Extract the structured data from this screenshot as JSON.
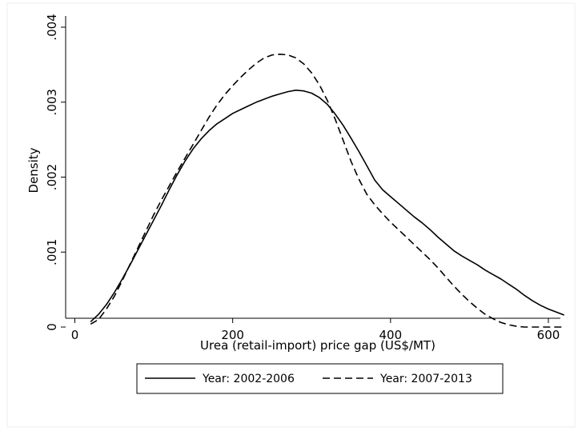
{
  "chart_data": {
    "type": "line",
    "xlabel": "Urea (retail-import) price gap (US$/MT)",
    "ylabel": "Density",
    "xlim": [
      0,
      640
    ],
    "ylim": [
      0,
      0.004
    ],
    "xticks": [
      0,
      200,
      400,
      600
    ],
    "xtick_labels": [
      "0",
      "200",
      "400",
      "600"
    ],
    "yticks": [
      0,
      0.001,
      0.002,
      0.003,
      0.004
    ],
    "ytick_labels": [
      "0",
      ".001",
      ".002",
      ".003",
      ".004"
    ],
    "grid": false,
    "legend_position": "bottom",
    "series": [
      {
        "name": "Year: 2002-2006",
        "style": "solid",
        "color": "#000000",
        "x": [
          20,
          30,
          40,
          50,
          60,
          70,
          80,
          90,
          100,
          110,
          120,
          130,
          140,
          150,
          160,
          170,
          180,
          190,
          200,
          210,
          220,
          230,
          240,
          250,
          260,
          270,
          280,
          290,
          300,
          310,
          320,
          330,
          340,
          350,
          360,
          370,
          380,
          390,
          400,
          410,
          420,
          430,
          440,
          450,
          460,
          470,
          480,
          490,
          500,
          510,
          520,
          530,
          540,
          550,
          560,
          570,
          580,
          590,
          600,
          610,
          620
        ],
        "y": [
          7e-05,
          0.00017,
          0.0003,
          0.00046,
          0.00064,
          0.00083,
          0.00103,
          0.00123,
          0.00143,
          0.00163,
          0.00184,
          0.00204,
          0.00222,
          0.00238,
          0.00251,
          0.00262,
          0.00271,
          0.00278,
          0.00285,
          0.0029,
          0.00295,
          0.003,
          0.00304,
          0.00308,
          0.00311,
          0.00314,
          0.00316,
          0.00315,
          0.00312,
          0.00306,
          0.00297,
          0.00284,
          0.00269,
          0.00252,
          0.00234,
          0.00215,
          0.00196,
          0.00183,
          0.00174,
          0.00165,
          0.00156,
          0.00147,
          0.00139,
          0.0013,
          0.0012,
          0.00111,
          0.00102,
          0.00095,
          0.00089,
          0.00083,
          0.00076,
          0.0007,
          0.00064,
          0.00057,
          0.0005,
          0.00042,
          0.00035,
          0.00029,
          0.00024,
          0.0002,
          0.00016
        ]
      },
      {
        "name": "Year: 2007-2013",
        "style": "dashed",
        "color": "#000000",
        "x": [
          20,
          30,
          40,
          50,
          60,
          70,
          80,
          90,
          100,
          110,
          120,
          130,
          140,
          150,
          160,
          170,
          180,
          190,
          200,
          210,
          220,
          230,
          240,
          250,
          260,
          270,
          280,
          290,
          300,
          310,
          320,
          330,
          340,
          350,
          360,
          370,
          380,
          390,
          400,
          410,
          420,
          430,
          440,
          450,
          460,
          470,
          480,
          490,
          500,
          510,
          520,
          530,
          540,
          550,
          560,
          570,
          580,
          590,
          600,
          610,
          620
        ],
        "y": [
          4e-05,
          0.0001,
          0.00024,
          0.00041,
          0.00062,
          0.00084,
          0.00106,
          0.00128,
          0.0015,
          0.0017,
          0.00189,
          0.00208,
          0.00226,
          0.00244,
          0.00262,
          0.0028,
          0.00296,
          0.0031,
          0.00322,
          0.00333,
          0.00343,
          0.00352,
          0.00359,
          0.00363,
          0.00364,
          0.00363,
          0.00359,
          0.00351,
          0.00339,
          0.00323,
          0.00302,
          0.00277,
          0.00249,
          0.00221,
          0.00197,
          0.00177,
          0.00163,
          0.00151,
          0.0014,
          0.0013,
          0.0012,
          0.0011,
          0.001,
          0.0009,
          0.00079,
          0.00067,
          0.00055,
          0.00044,
          0.00034,
          0.00025,
          0.00017,
          0.00011,
          6e-05,
          3e-05,
          1e-05,
          0.0,
          0.0,
          0.0,
          0.0,
          0.0,
          0.0
        ]
      }
    ]
  }
}
